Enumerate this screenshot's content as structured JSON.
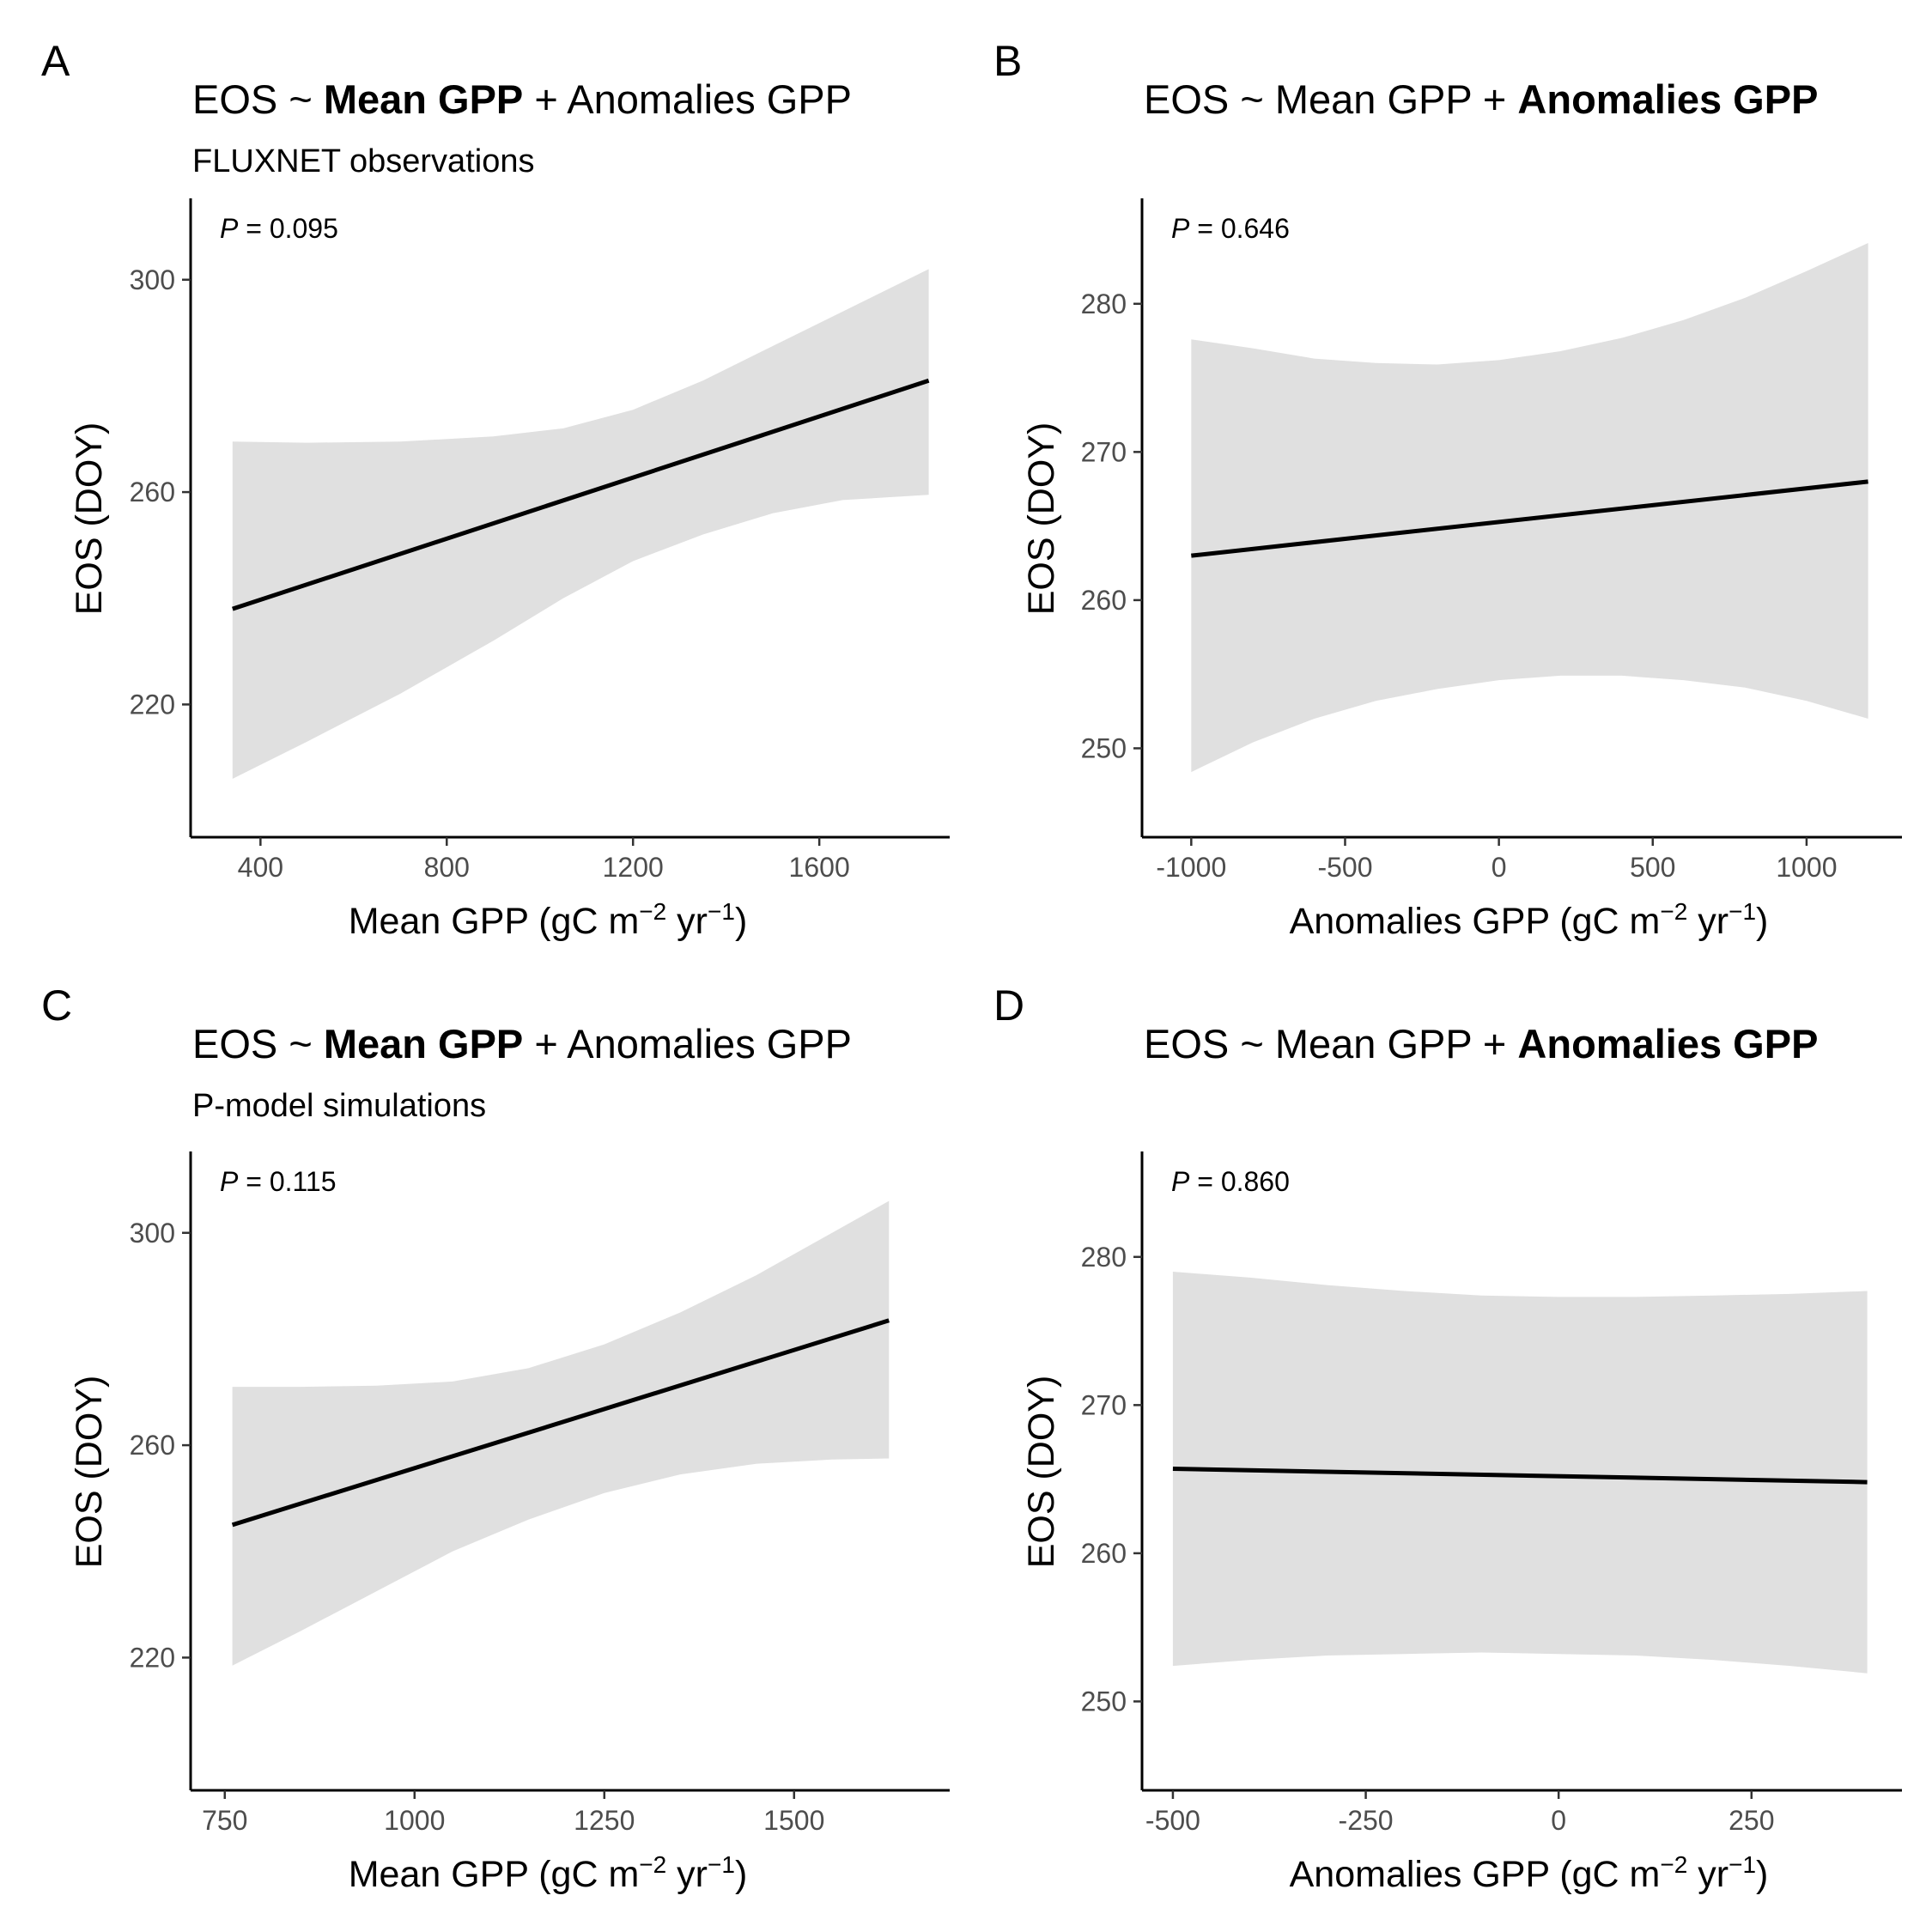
{
  "chart_data": [
    {
      "panel": "A",
      "type": "line",
      "title_parts": [
        {
          "text": "EOS ~ ",
          "bold": false
        },
        {
          "text": "Mean GPP",
          "bold": true
        },
        {
          "text": " + Anomalies GPP",
          "bold": false
        }
      ],
      "subtitle": "FLUXNET observations",
      "annotation": {
        "italic": "P",
        "text": " = 0.095"
      },
      "xlabel": {
        "base": "Mean GPP (gC m",
        "sup1": "−2",
        "mid": " yr",
        "sup2": "−1",
        "end": ")"
      },
      "ylabel": "EOS (DOY)",
      "xlim": [
        250,
        1880
      ],
      "ylim": [
        195,
        315
      ],
      "xticks": [
        400,
        800,
        1200,
        1600
      ],
      "yticks": [
        220,
        260,
        300
      ],
      "xtick_labels": [
        "400",
        "800",
        "1200",
        "1600"
      ],
      "ytick_labels": [
        "220",
        "260",
        "300"
      ],
      "line": {
        "x": [
          340,
          1835
        ],
        "y": [
          238,
          281
        ]
      },
      "ribbon": {
        "x": [
          340,
          500,
          700,
          900,
          1050,
          1200,
          1350,
          1500,
          1650,
          1835
        ],
        "lower": [
          206,
          213,
          222,
          232,
          240,
          247,
          252,
          256,
          258.5,
          259.5
        ],
        "upper": [
          269.5,
          269.3,
          269.5,
          270.5,
          272,
          275.5,
          281,
          287.5,
          294,
          302
        ]
      }
    },
    {
      "panel": "B",
      "type": "line",
      "title_parts": [
        {
          "text": "EOS ~ Mean GPP + ",
          "bold": false
        },
        {
          "text": "Anomalies GPP",
          "bold": true
        }
      ],
      "subtitle": "",
      "annotation": {
        "italic": "P",
        "text": " = 0.646"
      },
      "xlabel": {
        "base": "Anomalies GPP (gC m",
        "sup1": "−2",
        "mid": " yr",
        "sup2": "−1",
        "end": ")"
      },
      "ylabel": "EOS (DOY)",
      "xlim": [
        -1160,
        1310
      ],
      "ylim": [
        244,
        287
      ],
      "xticks": [
        -1000,
        -500,
        0,
        500,
        1000
      ],
      "yticks": [
        250,
        260,
        270,
        280
      ],
      "xtick_labels": [
        "-1000",
        "-500",
        "0",
        "500",
        "1000"
      ],
      "ytick_labels": [
        "250",
        "260",
        "270",
        "280"
      ],
      "line": {
        "x": [
          -1000,
          1200
        ],
        "y": [
          263,
          268
        ]
      },
      "ribbon": {
        "x": [
          -1000,
          -800,
          -600,
          -400,
          -200,
          0,
          200,
          400,
          600,
          800,
          1000,
          1200
        ],
        "lower": [
          248.4,
          250.4,
          252,
          253.2,
          254,
          254.6,
          254.9,
          254.9,
          254.6,
          254.1,
          253.2,
          252
        ],
        "upper": [
          277.6,
          277,
          276.3,
          276,
          275.9,
          276.2,
          276.8,
          277.7,
          278.9,
          280.4,
          282.2,
          284.1
        ]
      }
    },
    {
      "panel": "C",
      "type": "line",
      "title_parts": [
        {
          "text": "EOS ~ ",
          "bold": false
        },
        {
          "text": "Mean GPP",
          "bold": true
        },
        {
          "text": " + Anomalies GPP",
          "bold": false
        }
      ],
      "subtitle": "P-model simulations",
      "annotation": {
        "italic": "P",
        "text": " = 0.115"
      },
      "xlabel": {
        "base": "Mean GPP (gC m",
        "sup1": "−2",
        "mid": " yr",
        "sup2": "−1",
        "end": ")"
      },
      "ylabel": "EOS (DOY)",
      "xlim": [
        705,
        1705
      ],
      "ylim": [
        195,
        315
      ],
      "xticks": [
        750,
        1000,
        1250,
        1500
      ],
      "yticks": [
        220,
        260,
        300
      ],
      "xtick_labels": [
        "750",
        "1000",
        "1250",
        "1500"
      ],
      "ytick_labels": [
        "220",
        "260",
        "300"
      ],
      "line": {
        "x": [
          760,
          1625
        ],
        "y": [
          245,
          283.5
        ]
      },
      "ribbon": {
        "x": [
          760,
          850,
          950,
          1050,
          1150,
          1250,
          1350,
          1450,
          1550,
          1625
        ],
        "lower": [
          218.5,
          225,
          232.5,
          240,
          246,
          251,
          254.5,
          256.5,
          257.3,
          257.5
        ],
        "upper": [
          271,
          271,
          271.2,
          272,
          274.5,
          279,
          285,
          292,
          300,
          306
        ]
      }
    },
    {
      "panel": "D",
      "type": "line",
      "title_parts": [
        {
          "text": "EOS ~ Mean GPP + ",
          "bold": false
        },
        {
          "text": "Anomalies GPP",
          "bold": true
        }
      ],
      "subtitle": "",
      "annotation": {
        "italic": "P",
        "text": " = 0.860"
      },
      "xlabel": {
        "base": "Anomalies GPP (gC m",
        "sup1": "−2",
        "mid": " yr",
        "sup2": "−1",
        "end": ")"
      },
      "ylabel": "EOS (DOY)",
      "xlim": [
        -540,
        445
      ],
      "ylim": [
        244,
        287
      ],
      "xticks": [
        -500,
        -250,
        0,
        250
      ],
      "yticks": [
        250,
        260,
        270,
        280
      ],
      "xtick_labels": [
        "-500",
        "-250",
        "0",
        "250"
      ],
      "ytick_labels": [
        "250",
        "260",
        "270",
        "280"
      ],
      "line": {
        "x": [
          -500,
          400
        ],
        "y": [
          265.7,
          264.8
        ]
      },
      "ribbon": {
        "x": [
          -500,
          -400,
          -300,
          -200,
          -100,
          0,
          100,
          200,
          300,
          400
        ],
        "lower": [
          252.4,
          252.8,
          253.1,
          253.2,
          253.3,
          253.2,
          253.1,
          252.8,
          252.4,
          251.9
        ],
        "upper": [
          279,
          278.6,
          278.1,
          277.7,
          277.4,
          277.3,
          277.3,
          277.4,
          277.5,
          277.7
        ]
      }
    }
  ]
}
